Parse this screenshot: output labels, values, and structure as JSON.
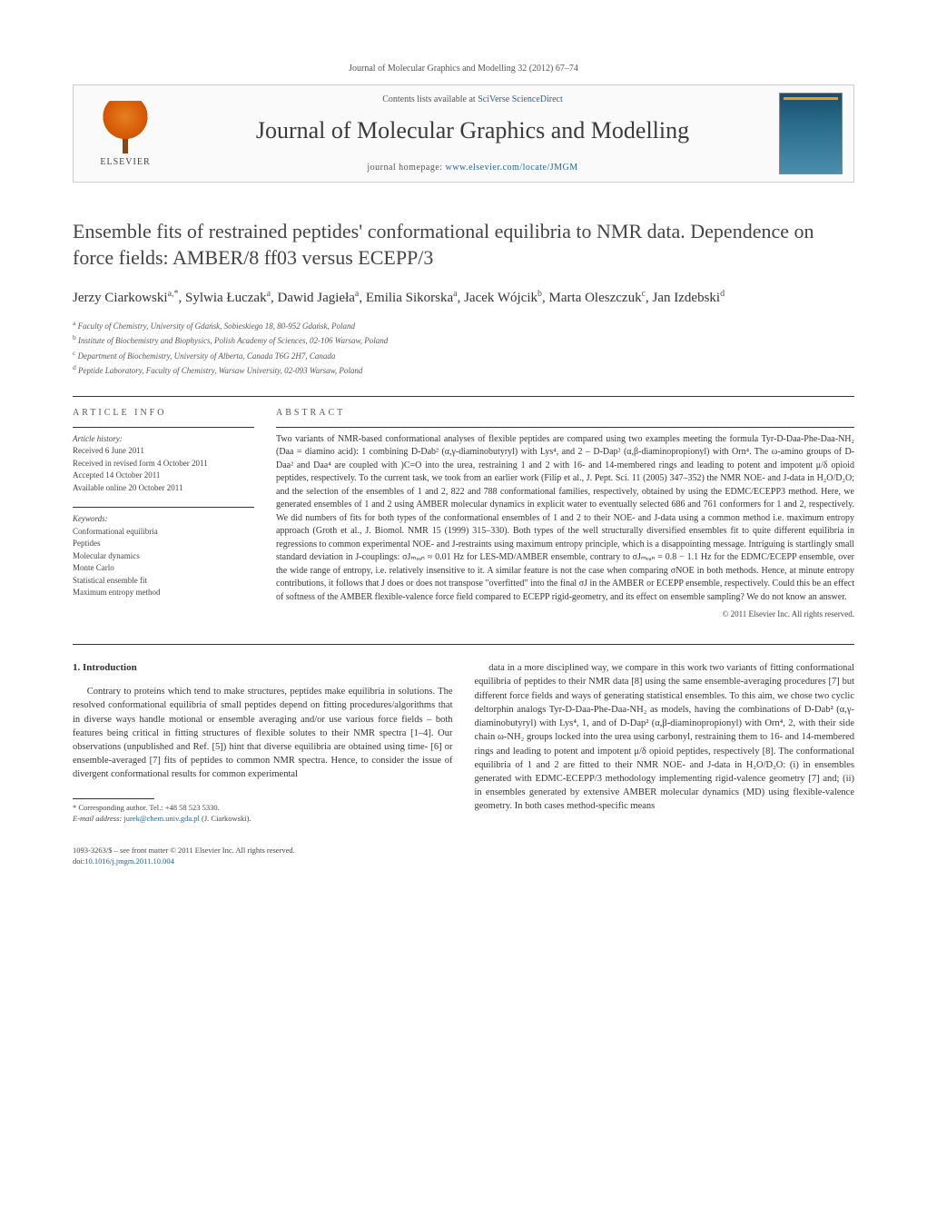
{
  "header": {
    "citation": "Journal of Molecular Graphics and Modelling 32 (2012) 67–74"
  },
  "banner": {
    "elsevier": "ELSEVIER",
    "contents_line_prefix": "Contents lists available at ",
    "contents_link": "SciVerse ScienceDirect",
    "journal_name": "Journal of Molecular Graphics and Modelling",
    "homepage_prefix": "journal homepage: ",
    "homepage_url": "www.elsevier.com/locate/JMGM"
  },
  "title": "Ensemble fits of restrained peptides' conformational equilibria to NMR data. Dependence on force fields: AMBER/8 ff03 versus ECEPP/3",
  "authors_html": "Jerzy Ciarkowski<sup>a,*</sup>, Sylwia Łuczak<sup>a</sup>, Dawid Jagieła<sup>a</sup>, Emilia Sikorska<sup>a</sup>, Jacek Wójcik<sup>b</sup>, Marta Oleszczuk<sup>c</sup>, Jan Izdebski<sup>d</sup>",
  "affiliations": [
    {
      "sup": "a",
      "text": "Faculty of Chemistry, University of Gdańsk, Sobieskiego 18, 80-952 Gdańsk, Poland"
    },
    {
      "sup": "b",
      "text": "Institute of Biochemistry and Biophysics, Polish Academy of Sciences, 02-106 Warsaw, Poland"
    },
    {
      "sup": "c",
      "text": "Department of Biochemistry, University of Alberta, Canada T6G 2H7, Canada"
    },
    {
      "sup": "d",
      "text": "Peptide Laboratory, Faculty of Chemistry, Warsaw University, 02-093 Warsaw, Poland"
    }
  ],
  "article_info": {
    "head": "ARTICLE INFO",
    "history_label": "Article history:",
    "history": [
      "Received 6 June 2011",
      "Received in revised form 4 October 2011",
      "Accepted 14 October 2011",
      "Available online 20 October 2011"
    ],
    "keywords_label": "Keywords:",
    "keywords": [
      "Conformational equilibria",
      "Peptides",
      "Molecular dynamics",
      "Monte Carlo",
      "Statistical ensemble fit",
      "Maximum entropy method"
    ]
  },
  "abstract": {
    "head": "ABSTRACT",
    "text": "Two variants of NMR-based conformational analyses of flexible peptides are compared using two examples meeting the formula Tyr-D-Daa-Phe-Daa-NH₂ (Daa = diamino acid): 1 combining D-Dab² (α,γ-diaminobutyryl) with Lys⁴, and 2 – D-Dap² (α,β-diaminopropionyl) with Orn⁴. The ω-amino groups of D-Daa² and Daa⁴ are coupled with )C=O into the urea, restraining 1 and 2 with 16- and 14-membered rings and leading to potent and impotent μ/δ opioid peptides, respectively. To the current task, we took from an earlier work (Filip et al., J. Pept. Sci. 11 (2005) 347–352) the NMR NOE- and J-data in H₂O/D₂O; and the selection of the ensembles of 1 and 2, 822 and 788 conformational families, respectively, obtained by using the EDMC/ECEPP3 method. Here, we generated ensembles of 1 and 2 using AMBER molecular dynamics in explicit water to eventually selected 686 and 761 conformers for 1 and 2, respectively. We did numbers of fits for both types of the conformational ensembles of 1 and 2 to their NOE- and J-data using a common method i.e. maximum entropy approach (Groth et al., J. Biomol. NMR 15 (1999) 315–330). Both types of the well structurally diversified ensembles fit to quite different equilibria in regressions to common experimental NOE- and J-restraints using maximum entropy principle, which is a disappointing message. Intriguing is startlingly small standard deviation in J-couplings: σJₘₑₐₙ ≈ 0.01 Hz for LES-MD/AMBER ensemble, contrary to σJₘₑₐₙ = 0.8 − 1.1 Hz for the EDMC/ECEPP ensemble, over the wide range of entropy, i.e. relatively insensitive to it. A similar feature is not the case when comparing σNOE in both methods. Hence, at minute entropy contributions, it follows that J does or does not transpose \"overfitted\" into the final σJ in the AMBER or ECEPP ensemble, respectively. Could this be an effect of softness of the AMBER flexible-valence force field compared to ECEPP rigid-geometry, and its effect on ensemble sampling? We do not know an answer.",
    "copyright": "© 2011 Elsevier Inc. All rights reserved."
  },
  "body": {
    "section_number": "1.",
    "section_title": "Introduction",
    "left": "Contrary to proteins which tend to make structures, peptides make equilibria in solutions. The resolved conformational equilibria of small peptides depend on fitting procedures/algorithms that in diverse ways handle motional or ensemble averaging and/or use various force fields – both features being critical in fitting structures of flexible solutes to their NMR spectra [1–4]. Our observations (unpublished and Ref. [5]) hint that diverse equilibria are obtained using time- [6] or ensemble-averaged [7] fits of peptides to common NMR spectra. Hence, to consider the issue of divergent conformational results for common experimental",
    "right": "data in a more disciplined way, we compare in this work two variants of fitting conformational equilibria of peptides to their NMR data [8] using the same ensemble-averaging procedures [7] but different force fields and ways of generating statistical ensembles. To this aim, we chose two cyclic deltorphin analogs Tyr-D-Daa-Phe-Daa-NH₂ as models, having the combinations of D-Dab² (α,γ-diaminobutyryl) with Lys⁴, 1, and of D-Dap² (α,β-diaminopropionyl) with Orn⁴, 2, with their side chain ω-NH₂ groups locked into the urea using carbonyl, restraining them to 16- and 14-membered rings and leading to potent and impotent μ/δ opioid peptides, respectively [8]. The conformational equilibria of 1 and 2 are fitted to their NMR NOE- and J-data in H₂O/D₂O: (i) in ensembles generated with EDMC-ECEPP/3 methodology implementing rigid-valence geometry [7] and; (ii) in ensembles generated by extensive AMBER molecular dynamics (MD) using flexible-valence geometry. In both cases method-specific means"
  },
  "footnote": {
    "star": "*",
    "corr": "Corresponding author. Tel.: +48 58 523 5330.",
    "email_label": "E-mail address:",
    "email": "jurek@chem.univ.gda.pl",
    "email_who": "(J. Ciarkowski)."
  },
  "doi": {
    "line1": "1093-3263/$ – see front matter © 2011 Elsevier Inc. All rights reserved.",
    "line2_prefix": "doi:",
    "line2": "10.1016/j.jmgm.2011.10.004"
  }
}
